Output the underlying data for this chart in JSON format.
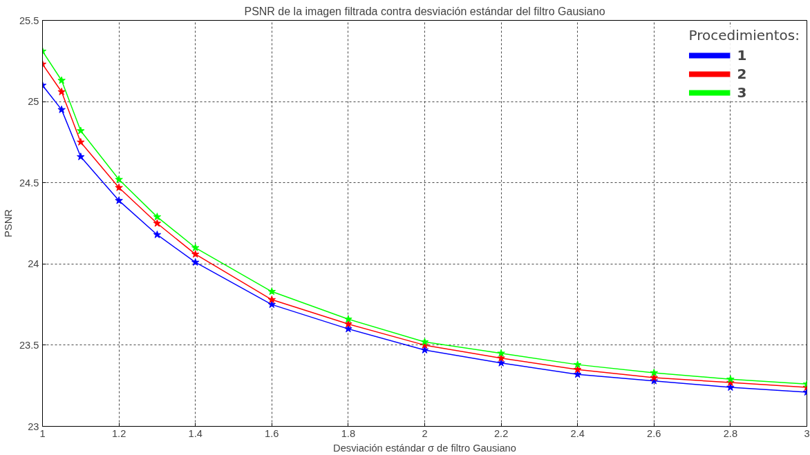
{
  "chart_data": {
    "type": "line",
    "title": "PSNR de la imagen filtrada contra desviación estándar del filtro Gausiano",
    "xlabel": "Desviación estándar σ de filtro Gausiano",
    "ylabel": "PSNR",
    "legend_title": "Procedimientos:",
    "x": [
      1.0,
      1.05,
      1.1,
      1.2,
      1.3,
      1.4,
      1.6,
      1.8,
      2.0,
      2.2,
      2.4,
      2.6,
      2.8,
      3.0
    ],
    "series": [
      {
        "name": "1",
        "color": "#0000ff",
        "values": [
          25.1,
          24.95,
          24.66,
          24.39,
          24.18,
          24.01,
          23.75,
          23.6,
          23.47,
          23.39,
          23.32,
          23.28,
          23.24,
          23.21
        ]
      },
      {
        "name": "2",
        "color": "#ff0000",
        "values": [
          25.23,
          25.06,
          24.75,
          24.47,
          24.25,
          24.06,
          23.78,
          23.63,
          23.5,
          23.42,
          23.35,
          23.3,
          23.27,
          23.24
        ]
      },
      {
        "name": "3",
        "color": "#00ff00",
        "values": [
          25.31,
          25.13,
          24.82,
          24.52,
          24.29,
          24.1,
          23.83,
          23.66,
          23.52,
          23.45,
          23.38,
          23.33,
          23.29,
          23.26
        ]
      }
    ],
    "xlim": [
      1,
      3
    ],
    "ylim": [
      23,
      25.5
    ],
    "xticks": [
      1,
      1.2,
      1.4,
      1.6,
      1.8,
      2,
      2.2,
      2.4,
      2.6,
      2.8,
      3
    ],
    "yticks": [
      23,
      23.5,
      24,
      24.5,
      25,
      25.5
    ],
    "grid": true,
    "legend": "top right",
    "marker": "star",
    "line_style": "solid"
  }
}
